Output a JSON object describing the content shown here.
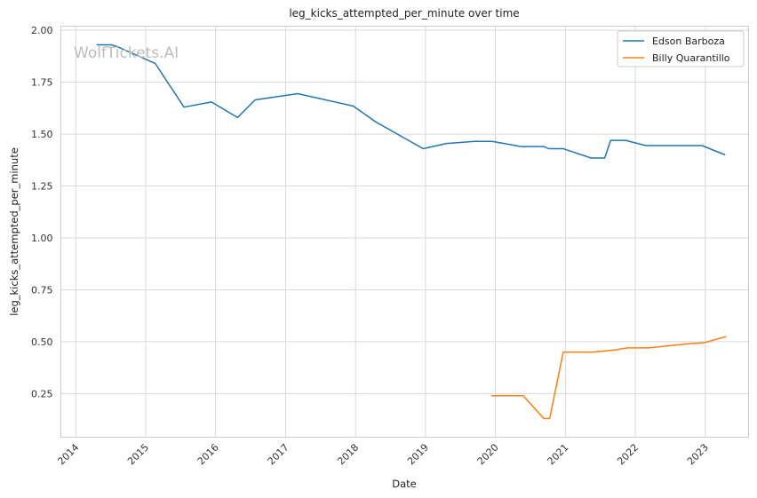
{
  "chart_data": {
    "type": "line",
    "title": "leg_kicks_attempted_per_minute over time",
    "xlabel": "Date",
    "ylabel": "leg_kicks_attempted_per_minute",
    "watermark": "WolfTickets.AI",
    "xlim": [
      "2013-10-15",
      "2023-08-15"
    ],
    "ylim": [
      0.04,
      2.02
    ],
    "x_ticks": [
      "2014",
      "2015",
      "2016",
      "2017",
      "2018",
      "2019",
      "2020",
      "2021",
      "2022",
      "2023"
    ],
    "y_ticks": [
      "0.25",
      "0.50",
      "0.75",
      "1.00",
      "1.25",
      "1.50",
      "1.75",
      "2.00"
    ],
    "grid": true,
    "legend_position": "top-right",
    "series": [
      {
        "name": "Edson Barboza",
        "color": "#1f77b4",
        "points": [
          [
            "2014-04-20",
            1.93
          ],
          [
            "2014-07-05",
            1.93
          ],
          [
            "2014-08-10",
            1.92
          ],
          [
            "2015-02-20",
            1.84
          ],
          [
            "2015-07-20",
            1.63
          ],
          [
            "2015-12-10",
            1.655
          ],
          [
            "2016-04-25",
            1.58
          ],
          [
            "2016-07-25",
            1.665
          ],
          [
            "2017-03-05",
            1.695
          ],
          [
            "2017-12-20",
            1.635
          ],
          [
            "2018-04-15",
            1.56
          ],
          [
            "2018-12-20",
            1.43
          ],
          [
            "2019-04-20",
            1.455
          ],
          [
            "2019-09-15",
            1.465
          ],
          [
            "2019-12-15",
            1.465
          ],
          [
            "2020-05-15",
            1.44
          ],
          [
            "2020-09-10",
            1.44
          ],
          [
            "2020-10-05",
            1.43
          ],
          [
            "2020-12-20",
            1.43
          ],
          [
            "2021-05-15",
            1.385
          ],
          [
            "2021-07-25",
            1.385
          ],
          [
            "2021-08-25",
            1.47
          ],
          [
            "2021-11-10",
            1.47
          ],
          [
            "2022-02-25",
            1.445
          ],
          [
            "2022-12-15",
            1.445
          ],
          [
            "2023-04-15",
            1.4
          ]
        ]
      },
      {
        "name": "Billy Quarantillo",
        "color": "#ff7f0e",
        "points": [
          [
            "2019-12-10",
            0.24
          ],
          [
            "2020-05-25",
            0.24
          ],
          [
            "2020-09-10",
            0.13
          ],
          [
            "2020-10-10",
            0.13
          ],
          [
            "2020-12-20",
            0.45
          ],
          [
            "2021-05-20",
            0.45
          ],
          [
            "2021-07-20",
            0.455
          ],
          [
            "2021-09-15",
            0.46
          ],
          [
            "2021-11-20",
            0.47
          ],
          [
            "2022-03-10",
            0.47
          ],
          [
            "2022-10-05",
            0.49
          ],
          [
            "2022-12-25",
            0.495
          ],
          [
            "2023-04-20",
            0.525
          ]
        ]
      }
    ]
  }
}
